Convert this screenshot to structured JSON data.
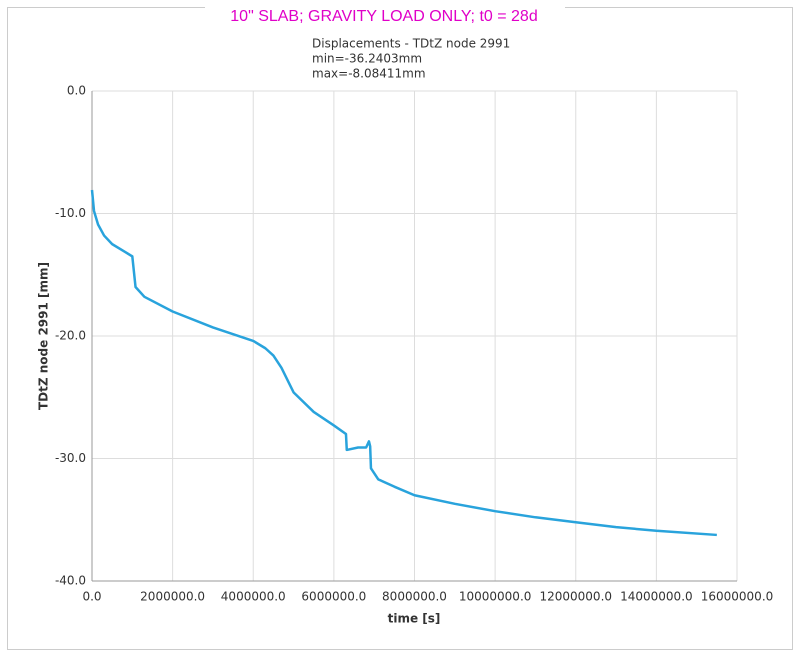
{
  "chart_data": {
    "type": "line",
    "title": "10\" SLAB; GRAVITY LOAD ONLY; t0 = 28d",
    "subtitle": [
      "Displacements - TDtZ node 2991",
      "min=-36.2403mm",
      "max=-8.08411mm"
    ],
    "x_label": "time [s]",
    "y_label": "TDtZ node 2991 [mm]",
    "grid": true,
    "x": [
      0,
      50000,
      150000,
      300000,
      500000,
      800000,
      1000000,
      1080000,
      1300000,
      2000000,
      3000000,
      4000000,
      4300000,
      4500000,
      4700000,
      5000000,
      5500000,
      6000000,
      6300000,
      6320000,
      6600000,
      6800000,
      6870000,
      6900000,
      6920000,
      7100000,
      7500000,
      8000000,
      9000000,
      10000000,
      11000000,
      12000000,
      13000000,
      14000000,
      15500000
    ],
    "series": [
      {
        "name": "TDtZ node 2991",
        "color": "#29a3dc",
        "values": [
          -8.08,
          -9.8,
          -10.9,
          -11.8,
          -12.5,
          -13.1,
          -13.5,
          -16.0,
          -16.8,
          -18.0,
          -19.3,
          -20.4,
          -21.0,
          -21.6,
          -22.6,
          -24.6,
          -26.2,
          -27.3,
          -28.0,
          -29.3,
          -29.1,
          -29.1,
          -28.6,
          -29.0,
          -30.8,
          -31.7,
          -32.3,
          -33.0,
          -33.7,
          -34.3,
          -34.8,
          -35.2,
          -35.6,
          -35.9,
          -36.24
        ]
      }
    ],
    "xlim": [
      0,
      16000000
    ],
    "xticks": [
      {
        "value": 0,
        "label": "0.0"
      },
      {
        "value": 2000000,
        "label": "2000000.0"
      },
      {
        "value": 4000000,
        "label": "4000000.0"
      },
      {
        "value": 6000000,
        "label": "6000000.0"
      },
      {
        "value": 8000000,
        "label": "8000000.0"
      },
      {
        "value": 10000000,
        "label": "10000000.0"
      },
      {
        "value": 12000000,
        "label": "12000000.0"
      },
      {
        "value": 14000000,
        "label": "14000000.0"
      },
      {
        "value": 16000000,
        "label": "16000000.0"
      }
    ],
    "ylim": [
      -40,
      0
    ],
    "yticks": [
      {
        "value": 0,
        "label": "0.0"
      },
      {
        "value": -10,
        "label": "-10.0"
      },
      {
        "value": -20,
        "label": "-20.0"
      },
      {
        "value": -30,
        "label": "-30.0"
      },
      {
        "value": -40,
        "label": "-40.0"
      }
    ]
  }
}
